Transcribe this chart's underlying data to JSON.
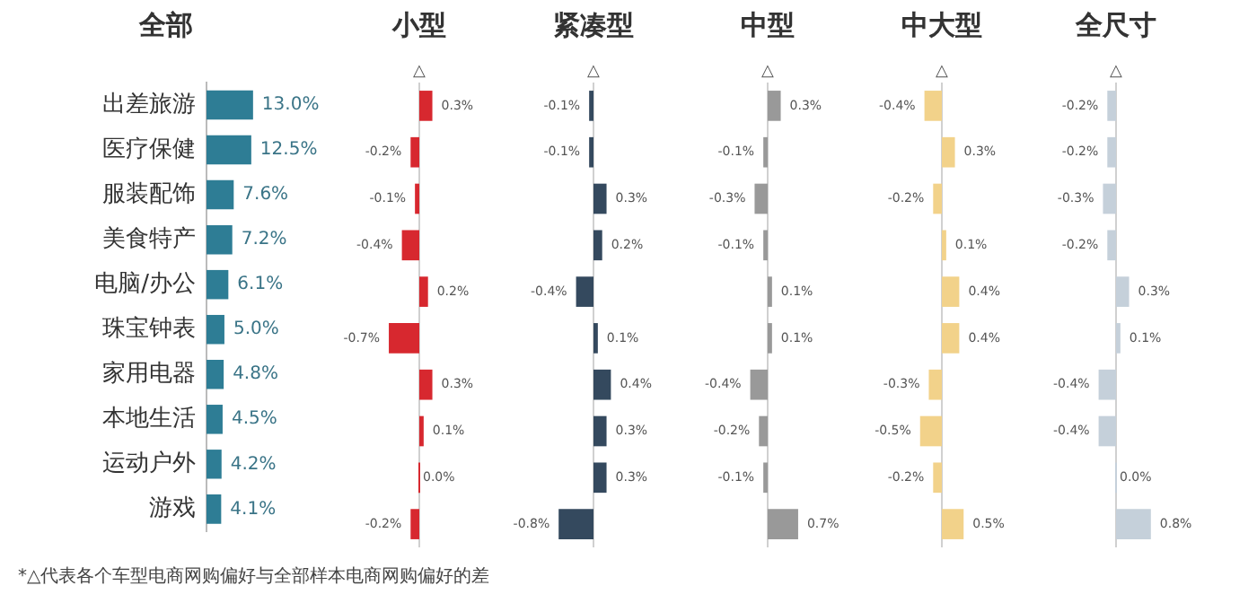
{
  "chart_data": [
    {
      "type": "bar",
      "orientation": "horizontal",
      "title": "全部",
      "categories": [
        "出差旅游",
        "医疗保健",
        "服装配饰",
        "美食特产",
        "电脑/办公",
        "珠宝钟表",
        "家用电器",
        "本地生活",
        "运动户外",
        "游戏"
      ],
      "values": [
        13.0,
        12.5,
        7.6,
        7.2,
        6.1,
        5.0,
        4.8,
        4.5,
        4.2,
        4.1
      ],
      "value_labels": [
        "13.0%",
        "12.5%",
        "7.6%",
        "7.2%",
        "6.1%",
        "5.0%",
        "4.8%",
        "4.5%",
        "4.2%",
        "4.1%"
      ],
      "color": "#2e7d95",
      "tick_labels": "y",
      "grid": false,
      "legend": false,
      "annotations": [
        "*△代表各个车型电商网购偏好与全部样本电商网购偏好的差"
      ]
    },
    {
      "type": "bar",
      "orientation": "horizontal",
      "title": "小型",
      "values": [
        0.3,
        -0.2,
        -0.1,
        -0.4,
        0.2,
        -0.7,
        0.3,
        0.1,
        0.0,
        -0.2
      ],
      "value_labels": [
        "0.3%",
        "-0.2%",
        "-0.1%",
        "-0.4%",
        "0.2%",
        "-0.7%",
        "0.3%",
        "0.1%",
        "0.0%",
        "-0.2%"
      ],
      "color": "#d7282f",
      "tick_labels": false,
      "grid": false,
      "legend": false,
      "ref_lines": [
        {
          "axis": "x",
          "value": 0,
          "color": "#d0d0d0"
        }
      ],
      "annotations": [
        "△"
      ]
    },
    {
      "type": "bar",
      "orientation": "horizontal",
      "title": "紧凑型",
      "values": [
        -0.1,
        -0.1,
        0.3,
        0.2,
        -0.4,
        0.1,
        0.4,
        0.3,
        0.3,
        -0.8
      ],
      "value_labels": [
        "-0.1%",
        "-0.1%",
        "0.3%",
        "0.2%",
        "-0.4%",
        "0.1%",
        "0.4%",
        "0.3%",
        "0.3%",
        "-0.8%"
      ],
      "color": "#34495e",
      "tick_labels": false,
      "grid": false,
      "legend": false,
      "ref_lines": [
        {
          "axis": "x",
          "value": 0,
          "color": "#d0d0d0"
        }
      ],
      "annotations": [
        "△"
      ]
    },
    {
      "type": "bar",
      "orientation": "horizontal",
      "title": "中型",
      "values": [
        0.3,
        -0.1,
        -0.3,
        -0.1,
        0.1,
        0.1,
        -0.4,
        -0.2,
        -0.1,
        0.7
      ],
      "value_labels": [
        "0.3%",
        "-0.1%",
        "-0.3%",
        "-0.1%",
        "0.1%",
        "0.1%",
        "-0.4%",
        "-0.2%",
        "-0.1%",
        "0.7%"
      ],
      "color": "#999999",
      "tick_labels": false,
      "grid": false,
      "legend": false,
      "ref_lines": [
        {
          "axis": "x",
          "value": 0,
          "color": "#d0d0d0"
        }
      ],
      "annotations": [
        "△"
      ]
    },
    {
      "type": "bar",
      "orientation": "horizontal",
      "title": "中大型",
      "values": [
        -0.4,
        0.3,
        -0.2,
        0.1,
        0.4,
        0.4,
        -0.3,
        -0.5,
        -0.2,
        0.5
      ],
      "value_labels": [
        "-0.4%",
        "0.3%",
        "-0.2%",
        "0.1%",
        "0.4%",
        "0.4%",
        "-0.3%",
        "-0.5%",
        "-0.2%",
        "0.5%"
      ],
      "color": "#f2d28a",
      "tick_labels": false,
      "grid": false,
      "legend": false,
      "ref_lines": [
        {
          "axis": "x",
          "value": 0,
          "color": "#d0d0d0"
        }
      ],
      "annotations": [
        "△"
      ]
    },
    {
      "type": "bar",
      "orientation": "horizontal",
      "title": "全尺寸",
      "values": [
        -0.2,
        -0.2,
        -0.3,
        -0.2,
        0.3,
        0.1,
        -0.4,
        -0.4,
        0.0,
        0.8
      ],
      "value_labels": [
        "-0.2%",
        "-0.2%",
        "-0.3%",
        "-0.2%",
        "0.3%",
        "0.1%",
        "-0.4%",
        "-0.4%",
        "0.0%",
        "0.8%"
      ],
      "color": "#c5d0da",
      "tick_labels": false,
      "grid": false,
      "legend": false,
      "ref_lines": [
        {
          "axis": "x",
          "value": 0,
          "color": "#d0d0d0"
        }
      ],
      "annotations": [
        "△"
      ]
    }
  ]
}
